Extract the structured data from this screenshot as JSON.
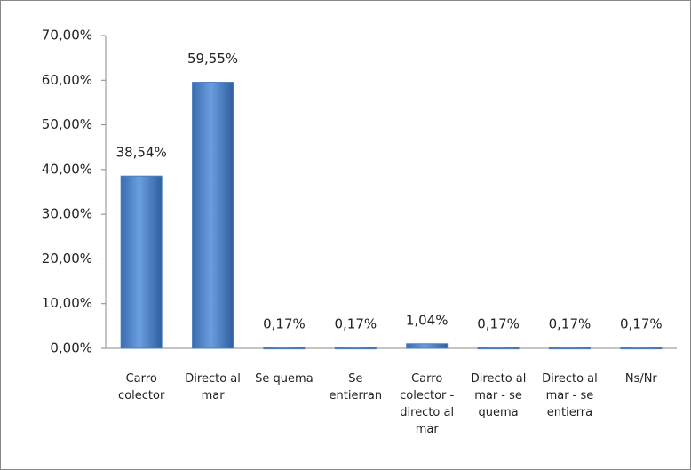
{
  "chart_data": {
    "type": "bar",
    "categories": [
      "Carro colector",
      "Directo al mar",
      "Se quema",
      "Se entierran",
      "Carro colector - directo al mar",
      "Directo al mar - se quema",
      "Directo al mar - se entierra",
      "Ns/Nr"
    ],
    "values": [
      38.54,
      59.55,
      0.17,
      0.17,
      1.04,
      0.17,
      0.17,
      0.17
    ],
    "value_labels": [
      "38,54%",
      "59,55%",
      "0,17%",
      "0,17%",
      "1,04%",
      "0,17%",
      "0,17%",
      "0,17%"
    ],
    "color": "#4a7ebb",
    "ylim": [
      0,
      70
    ],
    "yticks": [
      {
        "value": 0,
        "label": "0,00%"
      },
      {
        "value": 10,
        "label": "10,00%"
      },
      {
        "value": 20,
        "label": "20,00%"
      },
      {
        "value": 30,
        "label": "30,00%"
      },
      {
        "value": 40,
        "label": "40,00%"
      },
      {
        "value": 50,
        "label": "50,00%"
      },
      {
        "value": 60,
        "label": "60,00%"
      },
      {
        "value": 70,
        "label": "70,00%"
      }
    ],
    "grid": false
  }
}
